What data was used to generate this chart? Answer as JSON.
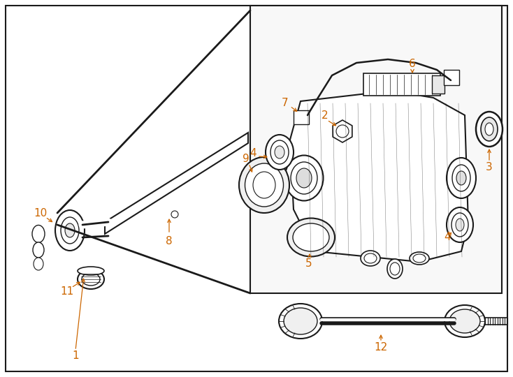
{
  "bg_color": "#ffffff",
  "line_color": "#1a1a1a",
  "label_color": "#cc6600",
  "fig_width": 7.34,
  "fig_height": 5.4,
  "dpi": 100
}
